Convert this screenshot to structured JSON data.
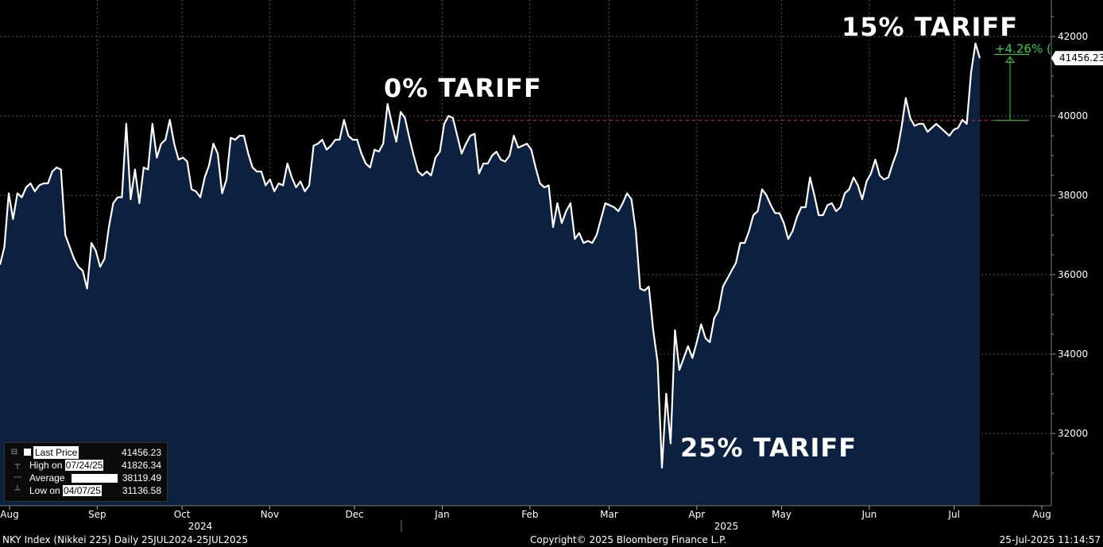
{
  "footer": {
    "left": "NKY Index (Nikkei 225)  Daily 25JUL2024-25JUL2025",
    "center": "Copyright© 2025 Bloomberg Finance L.P.",
    "right": "25-Jul-2025 11:14:57"
  },
  "annotations": {
    "zero": "0% TARIFF",
    "fifteen": "15% TARIFF",
    "twentyfive": "25% TARIFF"
  },
  "legend": {
    "last_label": "Last Price",
    "last_value": "41456.23",
    "high_label_pre": "High on ",
    "high_date": "07/24/25",
    "high_value": "41826.34",
    "avg_label": "Average",
    "avg_value": "38119.49",
    "low_label_pre": "Low on ",
    "low_date": "04/07/25",
    "low_value": "31136.58"
  },
  "colors": {
    "background": "#000000",
    "area_fill": "#0c2140",
    "line": "#ffffff",
    "reference_line": "#e23030",
    "change_green": "#2fd13f"
  },
  "chart_data": {
    "type": "area",
    "ylim": [
      30000,
      42500
    ],
    "y_ticks": [
      "32000",
      "34000",
      "36000",
      "38000",
      "40000",
      "42000"
    ],
    "x_ticks": [
      "Aug",
      "Sep",
      "Oct",
      "Nov",
      "Dec",
      "Jan",
      "Feb",
      "Mar",
      "Apr",
      "May",
      "Jun",
      "Jul",
      "Aug"
    ],
    "x_tick_offsets": [
      0,
      31,
      61,
      92,
      122,
      153,
      184,
      212,
      243,
      273,
      304,
      334,
      365
    ],
    "year_labels": [
      "2024",
      "2025"
    ],
    "last_price_label": "41456.23",
    "reference_value": 39884,
    "change_label": "+4.26% (",
    "series": [
      {
        "values": [
          36250,
          36700,
          38050,
          37400,
          38050,
          37950,
          38200,
          38300,
          38100,
          38250,
          38300,
          38300,
          38600,
          38700,
          38650,
          37000,
          36700,
          36400,
          36200,
          36100,
          35650,
          36800,
          36600,
          36200,
          36400,
          37200,
          37800,
          37950,
          37950,
          39800,
          37900,
          38650,
          37800,
          38700,
          38650,
          39800,
          38950,
          39300,
          39400,
          39900,
          39300,
          38900,
          38950,
          38850,
          38150,
          38100,
          37950,
          38450,
          38750,
          39300,
          39050,
          38050,
          38400,
          39450,
          39400,
          39500,
          39500,
          39050,
          38700,
          38600,
          38600,
          38250,
          38400,
          38100,
          38300,
          38250,
          38800,
          38450,
          38200,
          38350,
          38100,
          38250,
          39250,
          39300,
          39400,
          39150,
          39250,
          39400,
          39400,
          39900,
          39500,
          39400,
          39400,
          39050,
          38800,
          38700,
          39150,
          39100,
          39300,
          40300,
          39800,
          39350,
          40100,
          39950,
          39450,
          39000,
          38600,
          38500,
          38600,
          38500,
          38950,
          39100,
          39800,
          40000,
          39950,
          39500,
          39050,
          39300,
          39500,
          39550,
          38550,
          38800,
          38800,
          39000,
          39100,
          38900,
          38850,
          39000,
          39500,
          39200,
          39250,
          39300,
          39150,
          38700,
          38300,
          38200,
          38250,
          37200,
          37800,
          37300,
          37600,
          37800,
          36900,
          37050,
          36800,
          36850,
          36800,
          37000,
          37400,
          37800,
          37750,
          37700,
          37600,
          37800,
          38050,
          37900,
          37100,
          35650,
          35600,
          35700,
          34600,
          33800,
          31136,
          33000,
          31750,
          34600,
          33600,
          33900,
          34200,
          33900,
          34300,
          34750,
          34400,
          34300,
          34900,
          35100,
          35700,
          35900,
          36100,
          36300,
          36800,
          36800,
          37100,
          37500,
          37600,
          38150,
          38000,
          37750,
          37550,
          37550,
          37300,
          36900,
          37100,
          37450,
          37700,
          37700,
          38450,
          38000,
          37500,
          37500,
          37750,
          37800,
          37600,
          37700,
          38050,
          38150,
          38450,
          38250,
          37900,
          38350,
          38550,
          38900,
          38500,
          38400,
          38450,
          38800,
          39100,
          39700,
          40450,
          39950,
          39750,
          39800,
          39800,
          39600,
          39700,
          39800,
          39700,
          39600,
          39500,
          39650,
          39700,
          39900,
          39800,
          41100,
          41826,
          41456
        ]
      }
    ]
  }
}
